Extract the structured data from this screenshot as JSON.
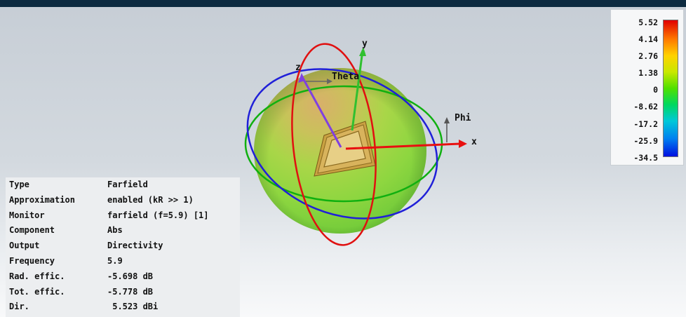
{
  "scene": {
    "axes": {
      "x": "x",
      "y": "y",
      "z": "z",
      "theta": "Theta",
      "phi": "Phi"
    },
    "colors": {
      "theta_circle": "#e01010",
      "phi_circle": "#2020d8",
      "third_circle": "#10b010",
      "x_axis": "#e81010",
      "z_axis": "#8040e0",
      "y_axis": "#30c030",
      "patch": "#c8a040"
    }
  },
  "legend": {
    "values": [
      "5.52",
      "4.14",
      "2.76",
      "1.38",
      "0",
      "-8.62",
      "-17.2",
      "-25.9",
      "-34.5"
    ]
  },
  "info_panel": {
    "rows": [
      {
        "key": "Type",
        "value": "Farfield"
      },
      {
        "key": "Approximation",
        "value": "enabled (kR >> 1)"
      },
      {
        "key": "Monitor",
        "value": "farfield (f=5.9) [1]"
      },
      {
        "key": "Component",
        "value": "Abs"
      },
      {
        "key": "Output",
        "value": "Directivity"
      },
      {
        "key": "Frequency",
        "value": "5.9"
      },
      {
        "key": "Rad. effic.",
        "value": "-5.698 dB"
      },
      {
        "key": "Tot. effic.",
        "value": "-5.778 dB"
      },
      {
        "key": "Dir.",
        "value": " 5.523 dBi"
      }
    ]
  }
}
